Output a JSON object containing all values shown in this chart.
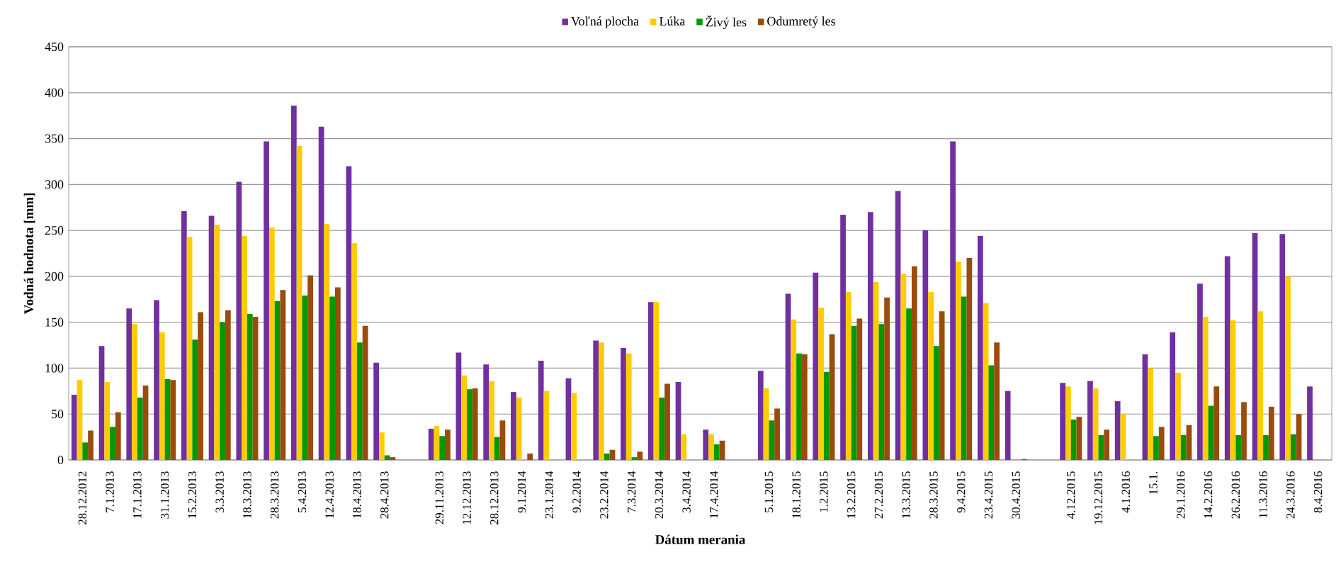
{
  "chart_data": {
    "type": "bar",
    "xlabel": "Dátum merania",
    "ylabel": "Vodná hodnota [mm]",
    "categories": [
      "28.12.2012",
      "7.1.2013",
      "17.1.2013",
      "31.1.2013",
      "15.2.2013",
      "3.3.2013",
      "18.3.2013",
      "28.3.2013",
      "5.4.2013",
      "12.4.2013",
      "18.4.2013",
      "28.4.2013",
      null,
      "29.11.2013",
      "12.12.2013",
      "28.12.2013",
      "9.1.2014",
      "23.1.2014",
      "9.2.2014",
      "23.2.2014",
      "7.3.2014",
      "20.3.2014",
      "3.4.2014",
      "17.4.2014",
      null,
      "5.1.2015",
      "18.1.2015",
      "1.2.2015",
      "13.2.2015",
      "27.2.2015",
      "13.3.2015",
      "28.3.2015",
      "9.4.2015",
      "23.4.2015",
      "30.4.2015",
      null,
      "4.12.2015",
      "19.12.2015",
      "4.1.2016",
      "15.1.",
      "29.1.2016",
      "14.2.2016",
      "26.2.2016",
      "11.3.2016",
      "24.3.2016",
      "8.4.2016"
    ],
    "series": [
      {
        "name": "Voľná plocha",
        "color": "#7030a0",
        "values": [
          71,
          124,
          165,
          174,
          271,
          266,
          303,
          347,
          386,
          363,
          320,
          106,
          null,
          34,
          117,
          104,
          74,
          108,
          89,
          130,
          122,
          172,
          85,
          33,
          null,
          97,
          181,
          204,
          267,
          270,
          293,
          250,
          347,
          244,
          75,
          null,
          84,
          86,
          64,
          115,
          139,
          192,
          222,
          247,
          246,
          80
        ]
      },
      {
        "name": "Lúka",
        "color": "#ffcc00",
        "values": [
          87,
          85,
          148,
          139,
          243,
          256,
          244,
          253,
          342,
          257,
          236,
          30,
          null,
          37,
          92,
          86,
          68,
          75,
          73,
          128,
          116,
          172,
          28,
          28,
          null,
          78,
          153,
          166,
          183,
          194,
          203,
          183,
          216,
          171,
          null,
          null,
          80,
          78,
          50,
          100,
          95,
          156,
          152,
          162,
          200,
          null
        ]
      },
      {
        "name": "Živý les",
        "color": "#009900",
        "values": [
          19,
          36,
          68,
          88,
          131,
          150,
          159,
          173,
          179,
          178,
          128,
          5,
          null,
          26,
          77,
          25,
          null,
          null,
          null,
          7,
          3,
          68,
          null,
          17,
          null,
          43,
          116,
          96,
          146,
          148,
          165,
          124,
          178,
          103,
          null,
          null,
          44,
          27,
          null,
          26,
          27,
          59,
          27,
          27,
          28,
          null
        ]
      },
      {
        "name": "Odumretý les",
        "color": "#994c0c",
        "values": [
          32,
          52,
          81,
          87,
          161,
          163,
          156,
          185,
          201,
          188,
          146,
          3,
          null,
          33,
          78,
          43,
          7,
          null,
          null,
          11,
          9,
          83,
          null,
          21,
          null,
          56,
          115,
          137,
          154,
          177,
          211,
          162,
          220,
          128,
          1,
          null,
          47,
          33,
          null,
          36,
          38,
          80,
          63,
          58,
          50,
          null
        ]
      }
    ],
    "ylim": [
      0,
      450
    ],
    "yticks": [
      0,
      50,
      100,
      150,
      200,
      250,
      300,
      350,
      400,
      450
    ],
    "grid": "y",
    "legend": "top"
  }
}
